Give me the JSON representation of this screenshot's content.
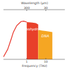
{
  "chart_data": {
    "type": "area",
    "xlabel": "Frequency (THz)",
    "log": "x",
    "xlim": [
      0.06,
      100
    ],
    "xticks": [
      1,
      10
    ],
    "ylim": [
      0,
      1
    ],
    "tick_labels": "x",
    "top_axis": {
      "label": "Wavelength (μm)",
      "ticks": [
        {
          "value": 1,
          "label": "300"
        },
        {
          "value": 10,
          "label": "30"
        }
      ]
    },
    "series": [
      {
        "type": "line",
        "color": "#e8352a",
        "x": [
          0.06,
          0.1,
          0.15,
          0.2,
          0.3,
          0.5,
          0.7,
          1
        ],
        "values": [
          0.05,
          0.2,
          0.4,
          0.55,
          0.68,
          0.76,
          0.77,
          0.75
        ]
      },
      {
        "name": "Carbohydrates",
        "type": "area",
        "color": "#e8402a",
        "x": [
          1,
          2,
          3,
          4
        ],
        "values": [
          0.75,
          0.74,
          0.73,
          0.7
        ]
      },
      {
        "name": "DNA",
        "type": "area",
        "color": "#f5a623",
        "x": [
          4,
          6,
          10,
          15,
          22
        ],
        "values": [
          0.6,
          0.58,
          0.57,
          0.56,
          0.55
        ]
      }
    ]
  }
}
